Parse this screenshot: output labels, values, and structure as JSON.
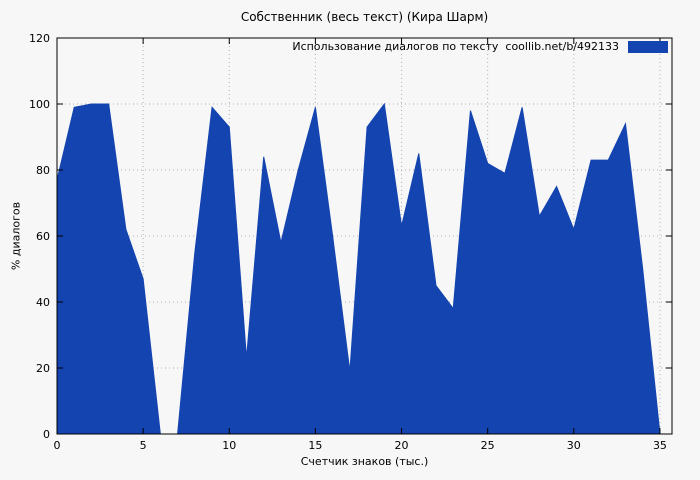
{
  "chart_data": {
    "type": "area",
    "title": "Собственник (весь текст) (Кира Шарм)",
    "legend": "Использование диалогов по тексту  coollib.net/b/492133",
    "xlabel": "Счетчик знаков (тыс.)",
    "ylabel": "% диалогов",
    "x": [
      0,
      1,
      2,
      3,
      4,
      5,
      6,
      7,
      8,
      9,
      10,
      11,
      12,
      13,
      14,
      15,
      16,
      17,
      18,
      19,
      20,
      21,
      22,
      23,
      24,
      25,
      26,
      27,
      28,
      29,
      30,
      31,
      32,
      33,
      34,
      35
    ],
    "values": [
      77,
      99,
      100,
      100,
      62,
      47,
      0,
      0,
      55,
      99,
      93,
      23,
      84,
      58,
      80,
      99,
      60,
      19,
      93,
      100,
      63,
      85,
      45,
      38,
      98,
      82,
      79,
      99,
      66,
      75,
      62,
      83,
      83,
      94,
      50,
      0
    ],
    "xlim": [
      0,
      35.7
    ],
    "ylim": [
      0,
      120
    ],
    "xticks": [
      0,
      5,
      10,
      15,
      20,
      25,
      30,
      35
    ],
    "yticks": [
      0,
      20,
      40,
      60,
      80,
      100,
      120
    ],
    "grid": true,
    "legend_position": "top-right",
    "fill_color": "#1444b0",
    "grid_color": "#b0b0b0",
    "border_color": "#000000",
    "background": "#f7f7f7"
  }
}
